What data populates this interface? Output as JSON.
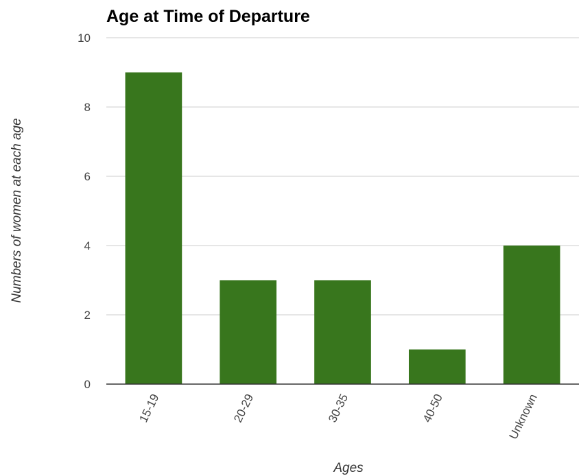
{
  "chart_data": {
    "type": "bar",
    "title": "Age at Time of Departure",
    "xlabel": "Ages",
    "ylabel": "Numbers of women at each age",
    "categories": [
      "15-19",
      "20-29",
      "30-35",
      "40-50",
      "Unknown"
    ],
    "values": [
      9,
      3,
      3,
      1,
      4
    ],
    "ylim": [
      0,
      10
    ],
    "yticks": [
      "0",
      "2",
      "4",
      "6",
      "8",
      "10"
    ],
    "grid": true,
    "legend": "none",
    "bar_color": "#38761d"
  }
}
